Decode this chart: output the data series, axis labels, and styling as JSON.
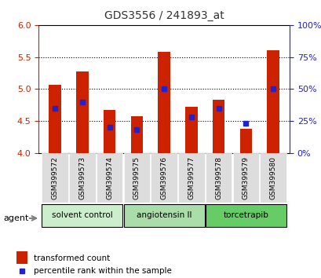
{
  "title": "GDS3556 / 241893_at",
  "samples": [
    "GSM399572",
    "GSM399573",
    "GSM399574",
    "GSM399575",
    "GSM399576",
    "GSM399577",
    "GSM399578",
    "GSM399579",
    "GSM399580"
  ],
  "transformed_count": [
    5.07,
    5.27,
    4.67,
    4.57,
    5.58,
    4.72,
    4.83,
    4.38,
    5.6
  ],
  "percentile_rank": [
    35,
    40,
    20,
    18,
    50,
    28,
    35,
    23,
    50
  ],
  "ylim_left": [
    4.0,
    6.0
  ],
  "ylim_right": [
    0,
    100
  ],
  "yticks_left": [
    4.0,
    4.5,
    5.0,
    5.5,
    6.0
  ],
  "yticks_right": [
    0,
    25,
    50,
    75,
    100
  ],
  "grid_values": [
    4.5,
    5.0,
    5.5
  ],
  "bar_color": "#cc2200",
  "marker_color": "#2222cc",
  "groups": [
    {
      "label": "solvent control",
      "indices": [
        0,
        1,
        2
      ],
      "color": "#cceecc"
    },
    {
      "label": "angiotensin II",
      "indices": [
        3,
        4,
        5
      ],
      "color": "#aaddaa"
    },
    {
      "label": "torcetrapib",
      "indices": [
        6,
        7,
        8
      ],
      "color": "#66cc66"
    }
  ],
  "agent_label": "agent",
  "legend_bar_label": "transformed count",
  "legend_marker_label": "percentile rank within the sample",
  "title_color": "#333333",
  "left_axis_color": "#cc2200",
  "right_axis_color": "#2222cc",
  "bar_width": 0.45,
  "figsize": [
    4.1,
    3.54
  ],
  "dpi": 100
}
